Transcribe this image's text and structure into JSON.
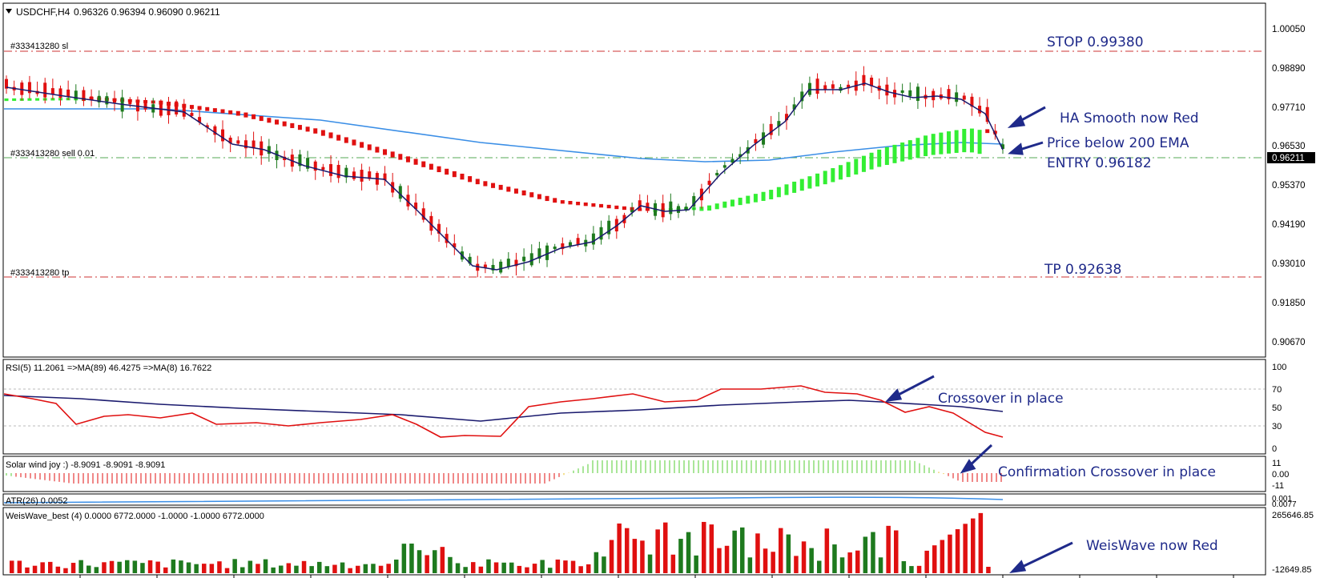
{
  "header": {
    "symbol": "USDCHF,H4",
    "ohlc": "0.96326 0.96394 0.96090 0.96211"
  },
  "orders": {
    "sl_label": "#333413280 sl",
    "entry_label": "#333413280 sell 0.01",
    "tp_label": "#333413280 tp"
  },
  "price_axis": {
    "ticks": [
      "1.00050",
      "0.98890",
      "0.97710",
      "0.96530",
      "0.95370",
      "0.94190",
      "0.93010",
      "0.91850",
      "0.90670"
    ],
    "current_price": "0.96211"
  },
  "annotations": {
    "stop": "STOP 0.99380",
    "ha_smooth": "HA Smooth now Red",
    "price_below": "Price below 200 EMA",
    "entry": "ENTRY 0.96182",
    "tp": "TP 0.92638",
    "crossover": "Crossover in place",
    "confirmation": "Confirmation Crossover in place",
    "weiswave": "WeisWave now Red"
  },
  "rsi_panel": {
    "label": "RSI(5) 11.2061  =>MA(89) 46.4275  =>MA(8) 16.7622",
    "ticks": [
      "100",
      "70",
      "50",
      "30",
      "0"
    ]
  },
  "solar_panel": {
    "label": "Solar wind joy :) -8.9091 -8.9091 -8.9091",
    "ticks": [
      "11",
      "0.00",
      "-11"
    ]
  },
  "atr_panel": {
    "label": "ATR(26) 0.0052",
    "ticks": [
      "0.001",
      "0.0077"
    ]
  },
  "weis_panel": {
    "label": "WeisWave_best (4) 0.0000 6772.0000 -1.0000 -1.0000 6772.0000",
    "ticks": [
      "265646.85",
      "-12649.85"
    ]
  },
  "colors": {
    "bull_candle": "#1e7a1e",
    "bear_candle": "#e01010",
    "ema200": "#3a8ee6",
    "ma_navy": "#1a1a6e",
    "ha_red": "#e01010",
    "ha_green": "#33ee33",
    "sl_tp_line": "#cc3333",
    "entry_line": "#55aa55",
    "annotation_text": "#1f2a8a",
    "axis_bg": "#ffffff"
  }
}
